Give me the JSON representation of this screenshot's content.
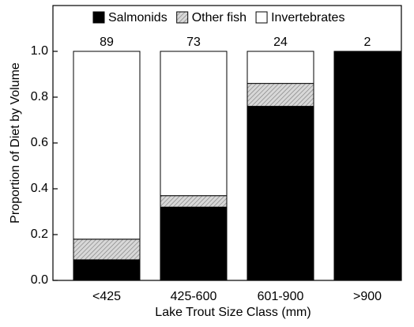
{
  "chart_data": {
    "type": "stacked_bar",
    "xlabel": "Lake Trout Size Class (mm)",
    "ylabel": "Proportion of Diet by Volume",
    "categories": [
      "<425",
      "425-600",
      "601-900",
      ">900"
    ],
    "series": [
      {
        "name": "Salmonids",
        "color": "#000000",
        "values": [
          0.09,
          0.32,
          0.76,
          1.0
        ]
      },
      {
        "name": "Other fish",
        "color": "#c8c8c8",
        "pattern": "hatch",
        "values": [
          0.09,
          0.05,
          0.1,
          0
        ]
      },
      {
        "name": "Invertebrates",
        "color": "#ffffff",
        "values": [
          0.82,
          0.63,
          0.14,
          0
        ]
      }
    ],
    "annotations": [
      89,
      73,
      24,
      2
    ],
    "ylim": [
      0,
      1.2
    ],
    "yticks": [
      {
        "value": 0,
        "label": "0.0"
      },
      {
        "value": 0.2,
        "label": "0.2"
      },
      {
        "value": 0.4,
        "label": "0.4"
      },
      {
        "value": 0.6,
        "label": "0.6"
      },
      {
        "value": 0.8,
        "label": "0.8"
      },
      {
        "value": 1.0,
        "label": "1.0"
      }
    ],
    "legend": "top"
  }
}
